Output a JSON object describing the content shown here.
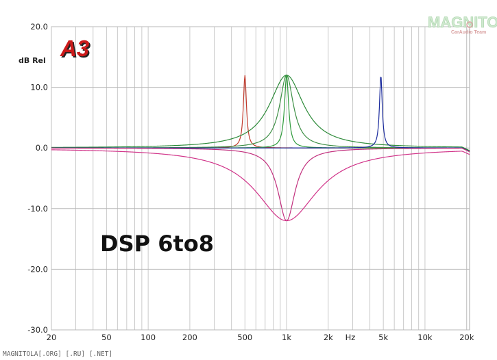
{
  "chart_data": {
    "type": "line",
    "title": "DSP 6to8",
    "ylabel": "dB Rel",
    "xlabel": "Hz",
    "xscale": "log",
    "xlim": [
      20,
      21000
    ],
    "ylim": [
      -30,
      20
    ],
    "yticks": [
      "20.0",
      "10.0",
      "0.0",
      "-10.0",
      "-20.0",
      "-30.0"
    ],
    "xticks": [
      {
        "v": 20,
        "label": "20"
      },
      {
        "v": 50,
        "label": "50"
      },
      {
        "v": 100,
        "label": "100"
      },
      {
        "v": 200,
        "label": "200"
      },
      {
        "v": 500,
        "label": "500"
      },
      {
        "v": 1000,
        "label": "1k"
      },
      {
        "v": 2000,
        "label": "2k"
      },
      {
        "v": 5000,
        "label": "5k"
      },
      {
        "v": 10000,
        "label": "10k"
      },
      {
        "v": 20000,
        "label": "20k"
      }
    ],
    "grid": true,
    "series": [
      {
        "color": "#c0392b",
        "peak_hz": 500,
        "gain_db": 12,
        "width_oct": 0.045
      },
      {
        "color": "#2e9a3b",
        "peak_hz": 1000,
        "gain_db": 12,
        "width_oct": 0.06
      },
      {
        "color": "#3d8f45",
        "peak_hz": 1000,
        "gain_db": 12,
        "width_oct": 0.2
      },
      {
        "color": "#2e8b3a",
        "peak_hz": 1000,
        "gain_db": 12,
        "width_oct": 0.5
      },
      {
        "color": "#1a2a9c",
        "peak_hz": 4800,
        "gain_db": 12,
        "width_oct": 0.04
      },
      {
        "color": "#c2307e",
        "peak_hz": 1000,
        "gain_db": -12,
        "width_oct": 0.25
      },
      {
        "color": "#d1358a",
        "peak_hz": 1000,
        "gain_db": -12,
        "width_oct": 0.9
      }
    ]
  },
  "badge": {
    "text": "A3",
    "color": "#cc1a1a"
  },
  "watermark": {
    "brand": "MAGNITOLA",
    "team": "CarAudio Team"
  },
  "footer": "MAGNITOLA[.ORG] [.RU] [.NET]"
}
